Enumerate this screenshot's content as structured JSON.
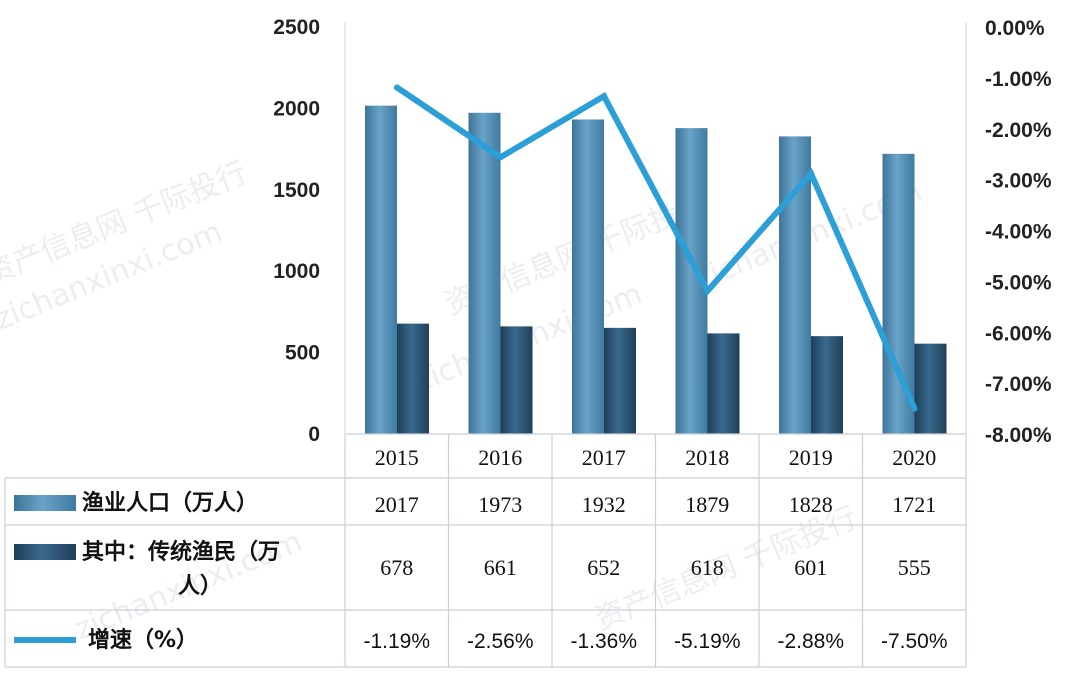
{
  "chart_data": {
    "type": "bar",
    "categories": [
      "2015",
      "2016",
      "2017",
      "2018",
      "2019",
      "2020"
    ],
    "series": [
      {
        "name": "渔业人口（万人）",
        "type": "bar",
        "axis": "left",
        "color": "#4f8bb0",
        "values": [
          2017,
          1973,
          1932,
          1879,
          1828,
          1721
        ],
        "table_labels": [
          "2017",
          "1973",
          "1932",
          "1879",
          "1828",
          "1721"
        ]
      },
      {
        "name": "其中：传统渔民（万人）",
        "type": "bar",
        "axis": "left",
        "color": "#27506e",
        "values": [
          678,
          661,
          652,
          618,
          601,
          555
        ],
        "table_labels": [
          "678",
          "661",
          "652",
          "618",
          "601",
          "555"
        ]
      },
      {
        "name": "增速（%）",
        "type": "line",
        "axis": "right",
        "color": "#2b9fd6",
        "values": [
          -1.19,
          -2.56,
          -1.36,
          -5.19,
          -2.88,
          -7.5
        ],
        "table_labels": [
          "-1.19%",
          "-2.56%",
          "-1.36%",
          "-5.19%",
          "-2.88%",
          "-7.50%"
        ]
      }
    ],
    "y_left": {
      "min": 0,
      "max": 2500,
      "ticks": [
        "0",
        "500",
        "1000",
        "1500",
        "2000",
        "2500"
      ]
    },
    "y_right": {
      "min": -8,
      "max": 0,
      "ticks": [
        "0.00%",
        "-1.00%",
        "-2.00%",
        "-3.00%",
        "-4.00%",
        "-5.00%",
        "-6.00%",
        "-7.00%",
        "-8.00%"
      ]
    },
    "data_table": true,
    "legend": "data-table"
  },
  "watermarks": [
    "zichanxinxi.com",
    "资产信息网 千际投行"
  ]
}
